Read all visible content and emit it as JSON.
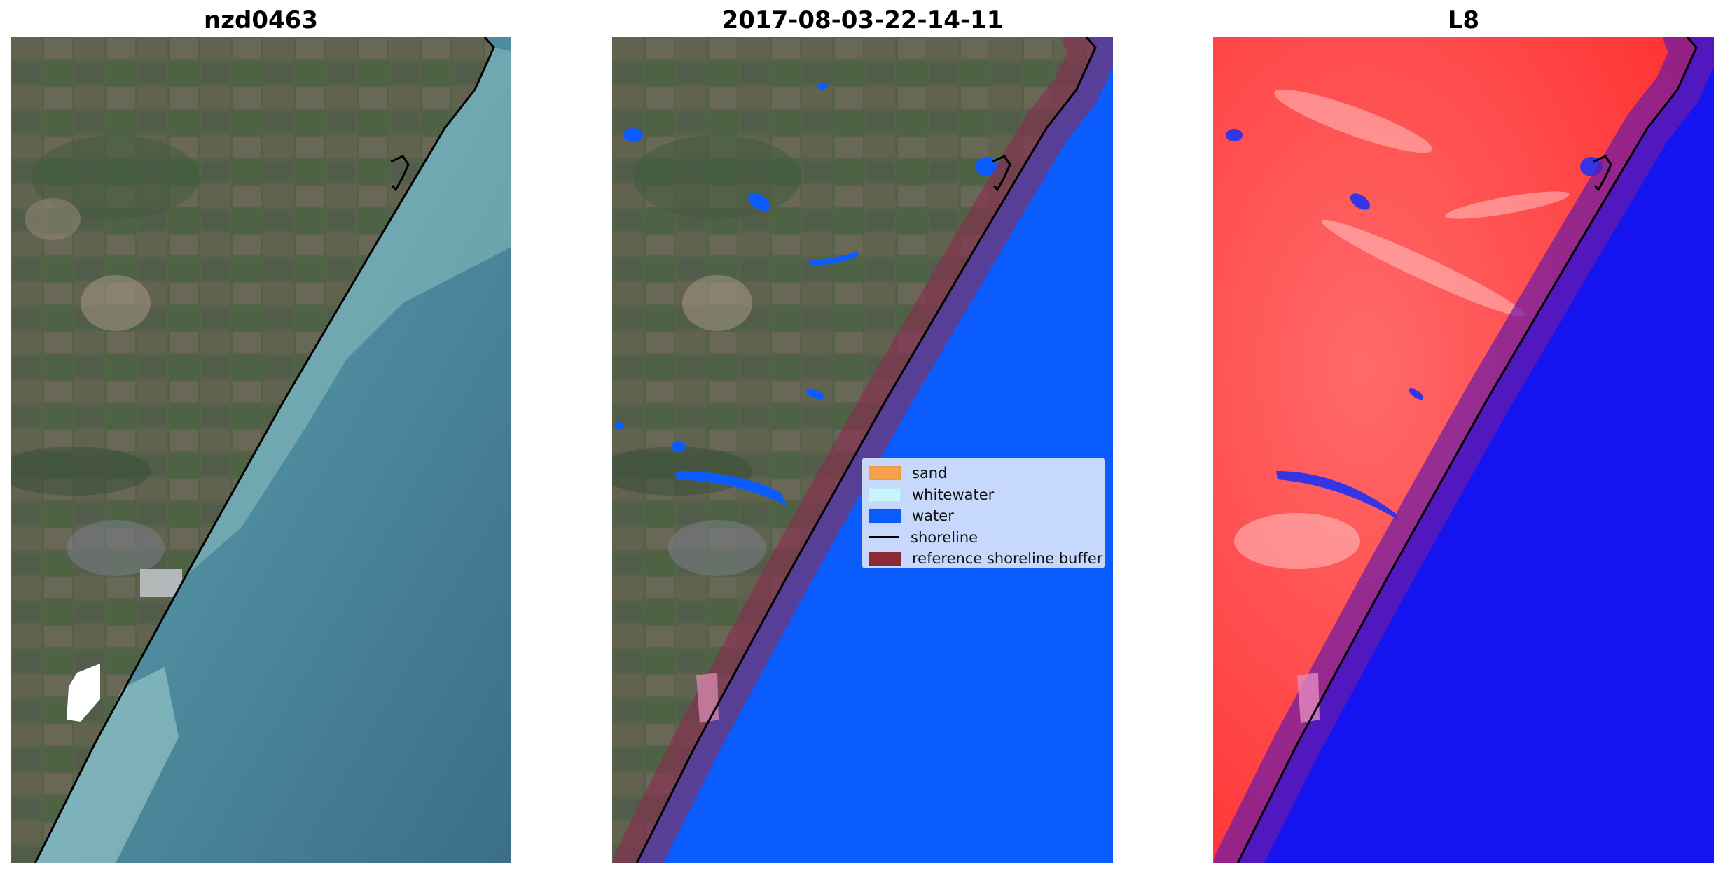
{
  "panels": [
    {
      "title": "nzd0463",
      "kind": "rgb-image"
    },
    {
      "title": "2017-08-03-22-14-11",
      "kind": "classification"
    },
    {
      "title": "L8",
      "kind": "water-index"
    }
  ],
  "legend": {
    "placement": "center-right of middle panel",
    "items": [
      {
        "label": "sand",
        "color": "#f5a04a",
        "kind": "patch"
      },
      {
        "label": "whitewater",
        "color": "#c8f4ff",
        "kind": "patch"
      },
      {
        "label": "water",
        "color": "#0a5cff",
        "kind": "patch"
      },
      {
        "label": "shoreline",
        "color": "#000000",
        "kind": "line"
      },
      {
        "label": "reference shoreline buffer",
        "color": "#8b2a36",
        "kind": "patch"
      }
    ]
  },
  "colors": {
    "land": "#5f6a52",
    "sea_rgb": "#4f8a9a",
    "water_class": "#0a5cff",
    "index_land": "#ff3a3a",
    "index_water": "#1414f0",
    "buffer": "#7a2f6f",
    "shoreline": "#000000",
    "cloud_mask": "#ffffff"
  }
}
